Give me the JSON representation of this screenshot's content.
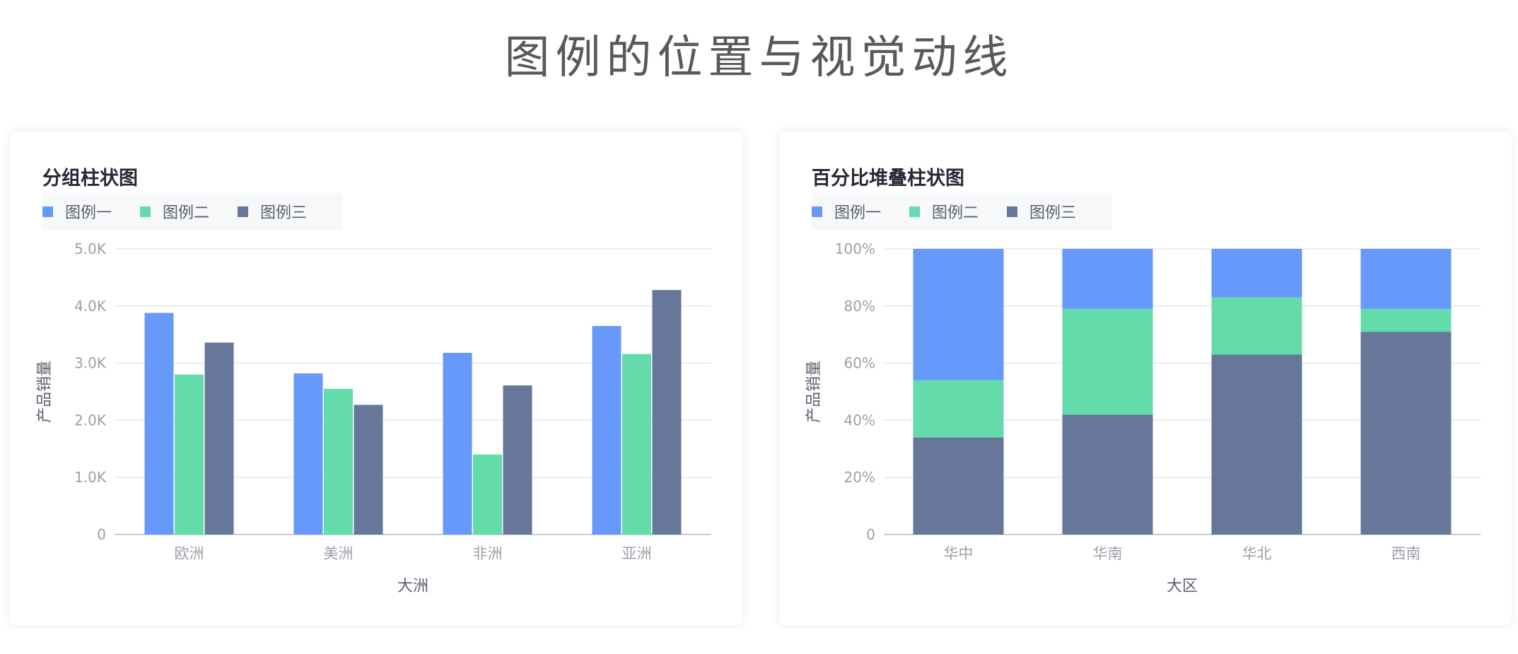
{
  "page": {
    "title": "图例的位置与视觉动线"
  },
  "colors": {
    "series1": "#6699f9",
    "series2": "#63dbab",
    "series3": "#667799",
    "grid": "#e6e8ec",
    "axis": "#c9ccd3",
    "tick": "#9b9fa8",
    "axis_label": "#595f6d"
  },
  "legend": {
    "items": [
      "图例一",
      "图例二",
      "图例三"
    ]
  },
  "chart_data": [
    {
      "type": "bar",
      "title": "分组柱状图",
      "xlabel": "大洲",
      "ylabel": "产品销量",
      "categories": [
        "欧洲",
        "美洲",
        "非洲",
        "亚洲"
      ],
      "yticks": [
        "0",
        "1.0K",
        "2.0K",
        "3.0K",
        "4.0K",
        "5.0K"
      ],
      "ylim": [
        0,
        5000
      ],
      "grid": true,
      "legend_position": "top-left",
      "series": [
        {
          "name": "图例一",
          "values": [
            3880,
            2820,
            3180,
            3650
          ]
        },
        {
          "name": "图例二",
          "values": [
            2800,
            2550,
            1400,
            3160
          ]
        },
        {
          "name": "图例三",
          "values": [
            3360,
            2270,
            2610,
            4280
          ]
        }
      ]
    },
    {
      "type": "bar",
      "stacked": "percent",
      "title": "百分比堆叠柱状图",
      "xlabel": "大区",
      "ylabel": "产品销量",
      "categories": [
        "华中",
        "华南",
        "华北",
        "西南"
      ],
      "yticks": [
        "0",
        "20%",
        "40%",
        "60%",
        "80%",
        "100%"
      ],
      "ylim": [
        0,
        100
      ],
      "grid": true,
      "legend_position": "top-left",
      "series": [
        {
          "name": "图例三",
          "values": [
            34,
            42,
            63,
            71
          ]
        },
        {
          "name": "图例二",
          "values": [
            20,
            37,
            20,
            8
          ]
        },
        {
          "name": "图例一",
          "values": [
            46,
            21,
            17,
            21
          ]
        }
      ]
    }
  ]
}
